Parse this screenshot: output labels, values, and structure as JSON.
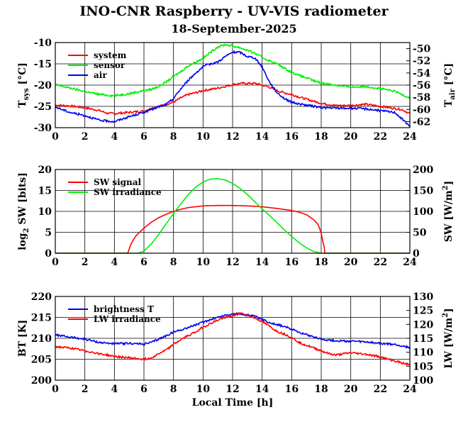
{
  "title": "INO-CNR Raspberry - UV-VIS radiometer",
  "date": "18-September-2025",
  "xlabel": "Local Time [h]",
  "chart_data": [
    {
      "type": "line",
      "id": "temperature",
      "ylabel": "T",
      "ylabel_sub": "sys",
      "ylabel_unit": " [°C]",
      "y2label": "T",
      "y2label_sub": "air",
      "y2label_unit": " [°C]",
      "xlim": [
        0,
        24
      ],
      "xticks": [
        "0",
        "2",
        "4",
        "6",
        "8",
        "10",
        "12",
        "14",
        "16",
        "18",
        "20",
        "22",
        "24"
      ],
      "ylim": [
        -30,
        -10
      ],
      "yticks": [
        "-10",
        "-15",
        "-20",
        "-25",
        "-30"
      ],
      "y2lim": [
        -63,
        -49
      ],
      "y2ticks": [
        "-50",
        "-52",
        "-54",
        "-56",
        "-58",
        "-60",
        "-62"
      ],
      "legend": [
        "system",
        "sensor",
        "air"
      ],
      "series": [
        {
          "name": "system",
          "color": "#ff0000",
          "axis": "left",
          "x": [
            0,
            1,
            2,
            3,
            3.5,
            4,
            5,
            6,
            6.5,
            7,
            7.5,
            8,
            8.5,
            9,
            9.5,
            10,
            10.5,
            11,
            11.5,
            12,
            12.5,
            13,
            13.5,
            14,
            14.5,
            15,
            15.5,
            16,
            16.5,
            17,
            17.5,
            18,
            19,
            20,
            21,
            22,
            23,
            23.5,
            24
          ],
          "y": [
            -24.7,
            -24.9,
            -25.3,
            -26.0,
            -26.6,
            -26.7,
            -26.4,
            -26.1,
            -25.5,
            -25.0,
            -24.5,
            -24.0,
            -23.0,
            -22.2,
            -21.8,
            -21.3,
            -21.0,
            -20.7,
            -20.3,
            -19.9,
            -19.6,
            -19.6,
            -19.6,
            -20.0,
            -20.5,
            -21.3,
            -21.8,
            -22.2,
            -22.8,
            -23.3,
            -23.8,
            -24.3,
            -24.8,
            -24.8,
            -24.5,
            -25.0,
            -25.5,
            -25.8,
            -26.7
          ]
        },
        {
          "name": "sensor",
          "color": "#00ee00",
          "axis": "left",
          "x": [
            0,
            1,
            2,
            3,
            4,
            5,
            6,
            6.5,
            7,
            7.5,
            8,
            8.5,
            9,
            9.5,
            10,
            10.5,
            11,
            11.5,
            12,
            12.5,
            13,
            13.5,
            14,
            14.5,
            15,
            15.5,
            16,
            16.5,
            17,
            17.5,
            18,
            19,
            20,
            21,
            22,
            23,
            24
          ],
          "y": [
            -19.9,
            -20.7,
            -21.5,
            -22.2,
            -22.5,
            -22.0,
            -21.3,
            -21.0,
            -20.3,
            -19.3,
            -18.0,
            -16.8,
            -15.5,
            -14.6,
            -13.7,
            -12.3,
            -11.0,
            -10.5,
            -10.8,
            -11.2,
            -11.8,
            -12.5,
            -13.5,
            -14.3,
            -15.0,
            -16.0,
            -17.0,
            -17.7,
            -18.3,
            -19.0,
            -19.5,
            -20.0,
            -20.5,
            -20.3,
            -20.8,
            -21.5,
            -23.0
          ]
        },
        {
          "name": "air",
          "color": "#0000ee",
          "axis": "right",
          "x": [
            0,
            1,
            2,
            3,
            4,
            5,
            6,
            6.5,
            7,
            7.5,
            8,
            8.5,
            9,
            9.5,
            10,
            10.5,
            11,
            11.5,
            12,
            12.5,
            13,
            13.5,
            14,
            14.5,
            15,
            15.5,
            16,
            16.5,
            17,
            17.5,
            18,
            19,
            20,
            21,
            22,
            23,
            24
          ],
          "y": [
            -59.6,
            -60.5,
            -61.0,
            -61.8,
            -62.0,
            -61.2,
            -60.5,
            -60.0,
            -59.6,
            -59.2,
            -58.2,
            -56.6,
            -55.2,
            -54.0,
            -53.0,
            -52.5,
            -52.2,
            -51.3,
            -50.6,
            -50.6,
            -51.3,
            -51.5,
            -53.0,
            -55.5,
            -57.2,
            -58.2,
            -58.8,
            -59.1,
            -59.3,
            -59.5,
            -59.7,
            -59.8,
            -59.8,
            -59.9,
            -60.2,
            -60.5,
            -62.8
          ]
        }
      ]
    },
    {
      "type": "line",
      "id": "shortwave",
      "ylabel": "log",
      "ylabel_sub": "2",
      "ylabel_unit": " SW [bits]",
      "y2label": "SW [W/m",
      "y2label_sup": "2",
      "y2label_unit": "]",
      "xlim": [
        0,
        24
      ],
      "xticks": [
        "0",
        "2",
        "4",
        "6",
        "8",
        "10",
        "12",
        "14",
        "16",
        "18",
        "20",
        "22",
        "24"
      ],
      "ylim": [
        0,
        20
      ],
      "yticks": [
        "0",
        "5",
        "10",
        "15",
        "20"
      ],
      "y2lim": [
        0,
        200
      ],
      "y2ticks": [
        "0",
        "50",
        "100",
        "150",
        "200"
      ],
      "legend": [
        "SW signal",
        "SW irradiance"
      ],
      "series": [
        {
          "name": "SW signal",
          "color": "#ff0000",
          "axis": "left",
          "x": [
            0,
            4.9,
            5.0,
            5.1,
            5.3,
            5.5,
            6,
            6.5,
            7,
            7.5,
            8,
            8.5,
            9,
            10,
            11,
            12,
            13,
            14,
            15,
            16,
            16.5,
            17,
            17.5,
            17.8,
            18.0,
            18.1,
            18.2,
            18.25,
            24
          ],
          "y": [
            0,
            0,
            1.0,
            2.0,
            3.3,
            4.3,
            6.0,
            7.4,
            8.5,
            9.3,
            10.0,
            10.5,
            10.9,
            11.3,
            11.4,
            11.4,
            11.3,
            11.1,
            10.7,
            10.2,
            9.8,
            9.2,
            8.0,
            6.8,
            4.8,
            3.0,
            1.5,
            0,
            0
          ]
        },
        {
          "name": "SW irradiance",
          "color": "#00ee00",
          "axis": "right",
          "x": [
            0,
            5.6,
            6,
            6.5,
            7,
            7.5,
            8,
            8.5,
            9,
            9.5,
            10,
            10.5,
            11,
            11.5,
            12,
            12.5,
            13,
            13.5,
            14,
            14.5,
            15,
            15.5,
            16,
            16.5,
            17,
            17.5,
            18,
            24
          ],
          "y": [
            0,
            0,
            5,
            22,
            45,
            70,
            95,
            118,
            140,
            158,
            170,
            177,
            178,
            175,
            167,
            155,
            140,
            123,
            106,
            90,
            73,
            56,
            40,
            25,
            13,
            4,
            0,
            0
          ]
        }
      ]
    },
    {
      "type": "line",
      "id": "longwave",
      "ylabel": "BT [K]",
      "y2label": "LW [W/m",
      "y2label_sup": "2",
      "y2label_unit": "]",
      "xlim": [
        0,
        24
      ],
      "xticks": [
        "0",
        "2",
        "4",
        "6",
        "8",
        "10",
        "12",
        "14",
        "16",
        "18",
        "20",
        "22",
        "24"
      ],
      "ylim": [
        200,
        220
      ],
      "yticks": [
        "200",
        "205",
        "210",
        "215",
        "220"
      ],
      "y2lim": [
        100,
        130
      ],
      "y2ticks": [
        "100",
        "105",
        "110",
        "115",
        "120",
        "125",
        "130"
      ],
      "legend": [
        "brightness T",
        "LW irradiance"
      ],
      "series": [
        {
          "name": "brightness T",
          "color": "#0000ee",
          "axis": "left",
          "x": [
            0,
            1,
            2,
            3,
            4,
            5,
            6,
            6.5,
            7,
            7.5,
            8,
            8.5,
            9,
            9.5,
            10,
            10.5,
            11,
            11.5,
            12,
            12.5,
            13,
            13.5,
            14,
            14.5,
            15,
            15.5,
            16,
            16.5,
            17,
            17.5,
            18,
            18.5,
            19,
            20,
            21,
            22,
            23,
            24
          ],
          "y": [
            210.8,
            210.3,
            209.8,
            209.0,
            208.7,
            208.8,
            208.6,
            209.0,
            209.8,
            210.6,
            211.5,
            212.0,
            212.6,
            213.2,
            213.8,
            214.5,
            215.0,
            215.5,
            215.8,
            215.8,
            215.6,
            215.2,
            214.5,
            213.8,
            213.3,
            212.8,
            212.2,
            211.5,
            210.9,
            210.4,
            209.8,
            209.6,
            209.4,
            209.3,
            209.1,
            208.8,
            208.5,
            207.8
          ]
        },
        {
          "name": "LW irradiance",
          "color": "#ff0000",
          "axis": "right",
          "x": [
            0,
            1,
            2,
            3,
            4,
            5,
            6,
            6.5,
            7,
            7.5,
            8,
            8.5,
            9,
            9.5,
            10,
            10.5,
            11,
            11.5,
            12,
            12.5,
            13,
            13.5,
            14,
            14.5,
            15,
            15.5,
            16,
            16.5,
            17,
            17.5,
            18,
            18.5,
            19,
            20,
            21,
            22,
            23,
            24
          ],
          "y": [
            112.0,
            111.5,
            110.5,
            109.5,
            108.5,
            108.0,
            107.5,
            108.0,
            109.5,
            110.8,
            112.8,
            114.5,
            116.0,
            117.3,
            119.0,
            120.3,
            121.5,
            122.5,
            123.0,
            124.0,
            123.2,
            122.3,
            121.0,
            119.3,
            117.5,
            116.5,
            115.3,
            113.5,
            112.5,
            111.5,
            110.5,
            109.5,
            109.0,
            109.8,
            109.3,
            108.3,
            106.8,
            105.5
          ]
        }
      ]
    }
  ]
}
